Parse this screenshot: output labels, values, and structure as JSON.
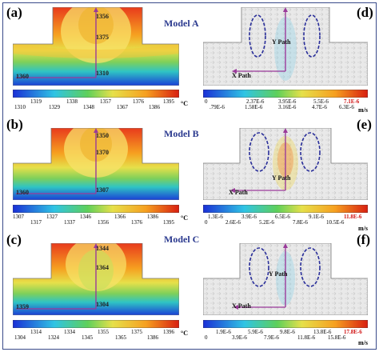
{
  "rows": [
    {
      "model": "Model A",
      "left_label": "(a)",
      "right_label": "(d)",
      "annotations": [
        "1356",
        "1375",
        "1310",
        "1360"
      ],
      "temp_ticks_top": [
        "1319",
        "1338",
        "1357",
        "1376",
        "1395"
      ],
      "temp_ticks_bottom": [
        "1310",
        "1329",
        "1348",
        "1367",
        "1386"
      ],
      "vel_ticks_top": [
        "0",
        "2.37E-6",
        "3.95E-6",
        "5.5E-6",
        "7.1E-6"
      ],
      "vel_ticks_bottom": [
        ".79E-6",
        "1.58E-6",
        "3.16E-6",
        "4.7E-6",
        "6.3E-6"
      ]
    },
    {
      "model": "Model B",
      "left_label": "(b)",
      "right_label": "(e)",
      "annotations": [
        "1350",
        "1370",
        "1307",
        "1360"
      ],
      "temp_ticks_top": [
        "1307",
        "1327",
        "1346",
        "1366",
        "1386"
      ],
      "temp_ticks_bottom": [
        "1317",
        "1337",
        "1356",
        "1376",
        "1395"
      ],
      "vel_ticks_top": [
        "1.3E-6",
        "3.9E-6",
        "6.5E-6",
        "9.1E-6",
        "11.8E-6"
      ],
      "vel_ticks_bottom": [
        "0",
        "2.6E-6",
        "5.2E-6",
        "7.8E-6",
        "10.5E-6"
      ]
    },
    {
      "model": "Model C",
      "left_label": "(c)",
      "right_label": "(f)",
      "annotations": [
        "1344",
        "1364",
        "1304",
        "1359"
      ],
      "temp_ticks_top": [
        "1314",
        "1334",
        "1355",
        "1375",
        "1396"
      ],
      "temp_ticks_bottom": [
        "1304",
        "1324",
        "1345",
        "1365",
        "1386"
      ],
      "vel_ticks_top": [
        "1.9E-6",
        "5.9E-6",
        "9.8E-6",
        "13.8E-6",
        "17.8E-6"
      ],
      "vel_ticks_bottom": [
        "0",
        "3.9E-6",
        "7.9E-6",
        "11.8E-6",
        "15.8E-6"
      ]
    }
  ],
  "temp_unit": "°C",
  "vel_unit": "m/s",
  "x_path_label": "X Path",
  "y_path_label": "Y Path",
  "colors": {
    "frame": "#3a4a8a",
    "title": "#2b3a8f",
    "ellipse": "#2a2f9a",
    "path_arrow": "#9a3a9a",
    "max_label": "#d01010"
  }
}
